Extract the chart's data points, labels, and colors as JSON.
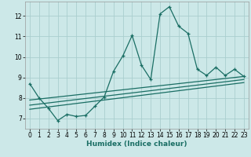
{
  "xlabel": "Humidex (Indice chaleur)",
  "ylabel": "",
  "bg_color": "#cce8e8",
  "line_color": "#1a6e64",
  "grid_color": "#aacece",
  "xlim": [
    -0.5,
    23.5
  ],
  "ylim": [
    6.5,
    12.7
  ],
  "xticks": [
    0,
    1,
    2,
    3,
    4,
    5,
    6,
    7,
    8,
    9,
    10,
    11,
    12,
    13,
    14,
    15,
    16,
    17,
    18,
    19,
    20,
    21,
    22,
    23
  ],
  "yticks": [
    7,
    8,
    9,
    10,
    11,
    12
  ],
  "main_x": [
    0,
    1,
    2,
    3,
    4,
    5,
    6,
    7,
    8,
    9,
    10,
    11,
    12,
    13,
    14,
    15,
    16,
    17,
    18,
    19,
    20,
    21,
    22,
    23
  ],
  "main_y": [
    8.7,
    8.0,
    7.5,
    6.9,
    7.2,
    7.1,
    7.15,
    7.6,
    8.05,
    9.3,
    10.05,
    11.05,
    9.6,
    8.9,
    12.1,
    12.45,
    11.5,
    11.15,
    9.4,
    9.1,
    9.5,
    9.1,
    9.4,
    9.05
  ],
  "trend1_x": [
    0,
    23
  ],
  "trend1_y": [
    7.9,
    9.05
  ],
  "trend2_x": [
    0,
    23
  ],
  "trend2_y": [
    7.65,
    8.9
  ],
  "trend3_x": [
    0,
    23
  ],
  "trend3_y": [
    7.45,
    8.75
  ]
}
